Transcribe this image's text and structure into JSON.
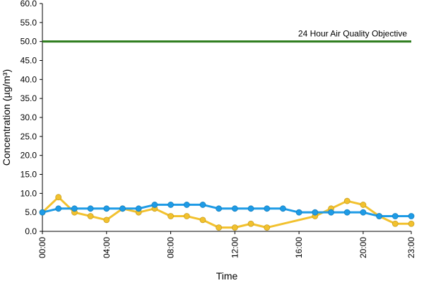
{
  "chart_data": {
    "type": "line",
    "title": "",
    "xlabel": "Time",
    "ylabel": "Concentration (µg/m³)",
    "ylim": [
      0,
      60
    ],
    "yticks": [
      "0.0",
      "5.0",
      "10.0",
      "15.0",
      "20.0",
      "25.0",
      "30.0",
      "35.0",
      "40.0",
      "45.0",
      "50.0",
      "55.0",
      "60.0"
    ],
    "xlim": [
      0,
      23
    ],
    "xticks": [
      {
        "x": 0,
        "label": "00:00"
      },
      {
        "x": 4,
        "label": "04:00"
      },
      {
        "x": 8,
        "label": "08:00"
      },
      {
        "x": 12,
        "label": "12:00"
      },
      {
        "x": 16,
        "label": "16:00"
      },
      {
        "x": 20,
        "label": "20:00"
      },
      {
        "x": 23,
        "label": "23:00"
      }
    ],
    "grid": false,
    "legend": "none",
    "objective": {
      "value": 50,
      "label": "24 Hour Air Quality Objective",
      "color": "#2e7d1e"
    },
    "series": [
      {
        "color": "#f2c12e",
        "points": [
          [
            0,
            5
          ],
          [
            1,
            9
          ],
          [
            2,
            5
          ],
          [
            3,
            4
          ],
          [
            4,
            3
          ],
          [
            5,
            6
          ],
          [
            6,
            5
          ],
          [
            7,
            6
          ],
          [
            8,
            4
          ],
          [
            9,
            4
          ],
          [
            10,
            3
          ],
          [
            11,
            1
          ],
          [
            12,
            1
          ],
          [
            13,
            2
          ],
          [
            14,
            1
          ],
          [
            17,
            4
          ],
          [
            18,
            6
          ],
          [
            19,
            8
          ],
          [
            20,
            7
          ],
          [
            21,
            4
          ],
          [
            22,
            2
          ],
          [
            23,
            2
          ]
        ]
      },
      {
        "color": "#1e9be6",
        "points": [
          [
            0,
            5
          ],
          [
            1,
            6
          ],
          [
            2,
            6
          ],
          [
            3,
            6
          ],
          [
            4,
            6
          ],
          [
            5,
            6
          ],
          [
            6,
            6
          ],
          [
            7,
            7
          ],
          [
            8,
            7
          ],
          [
            9,
            7
          ],
          [
            10,
            7
          ],
          [
            11,
            6
          ],
          [
            12,
            6
          ],
          [
            13,
            6
          ],
          [
            14,
            6
          ],
          [
            15,
            6
          ],
          [
            16,
            5
          ],
          [
            17,
            5
          ],
          [
            18,
            5
          ],
          [
            19,
            5
          ],
          [
            20,
            5
          ],
          [
            21,
            4
          ],
          [
            22,
            4
          ],
          [
            23,
            4
          ]
        ]
      }
    ]
  }
}
